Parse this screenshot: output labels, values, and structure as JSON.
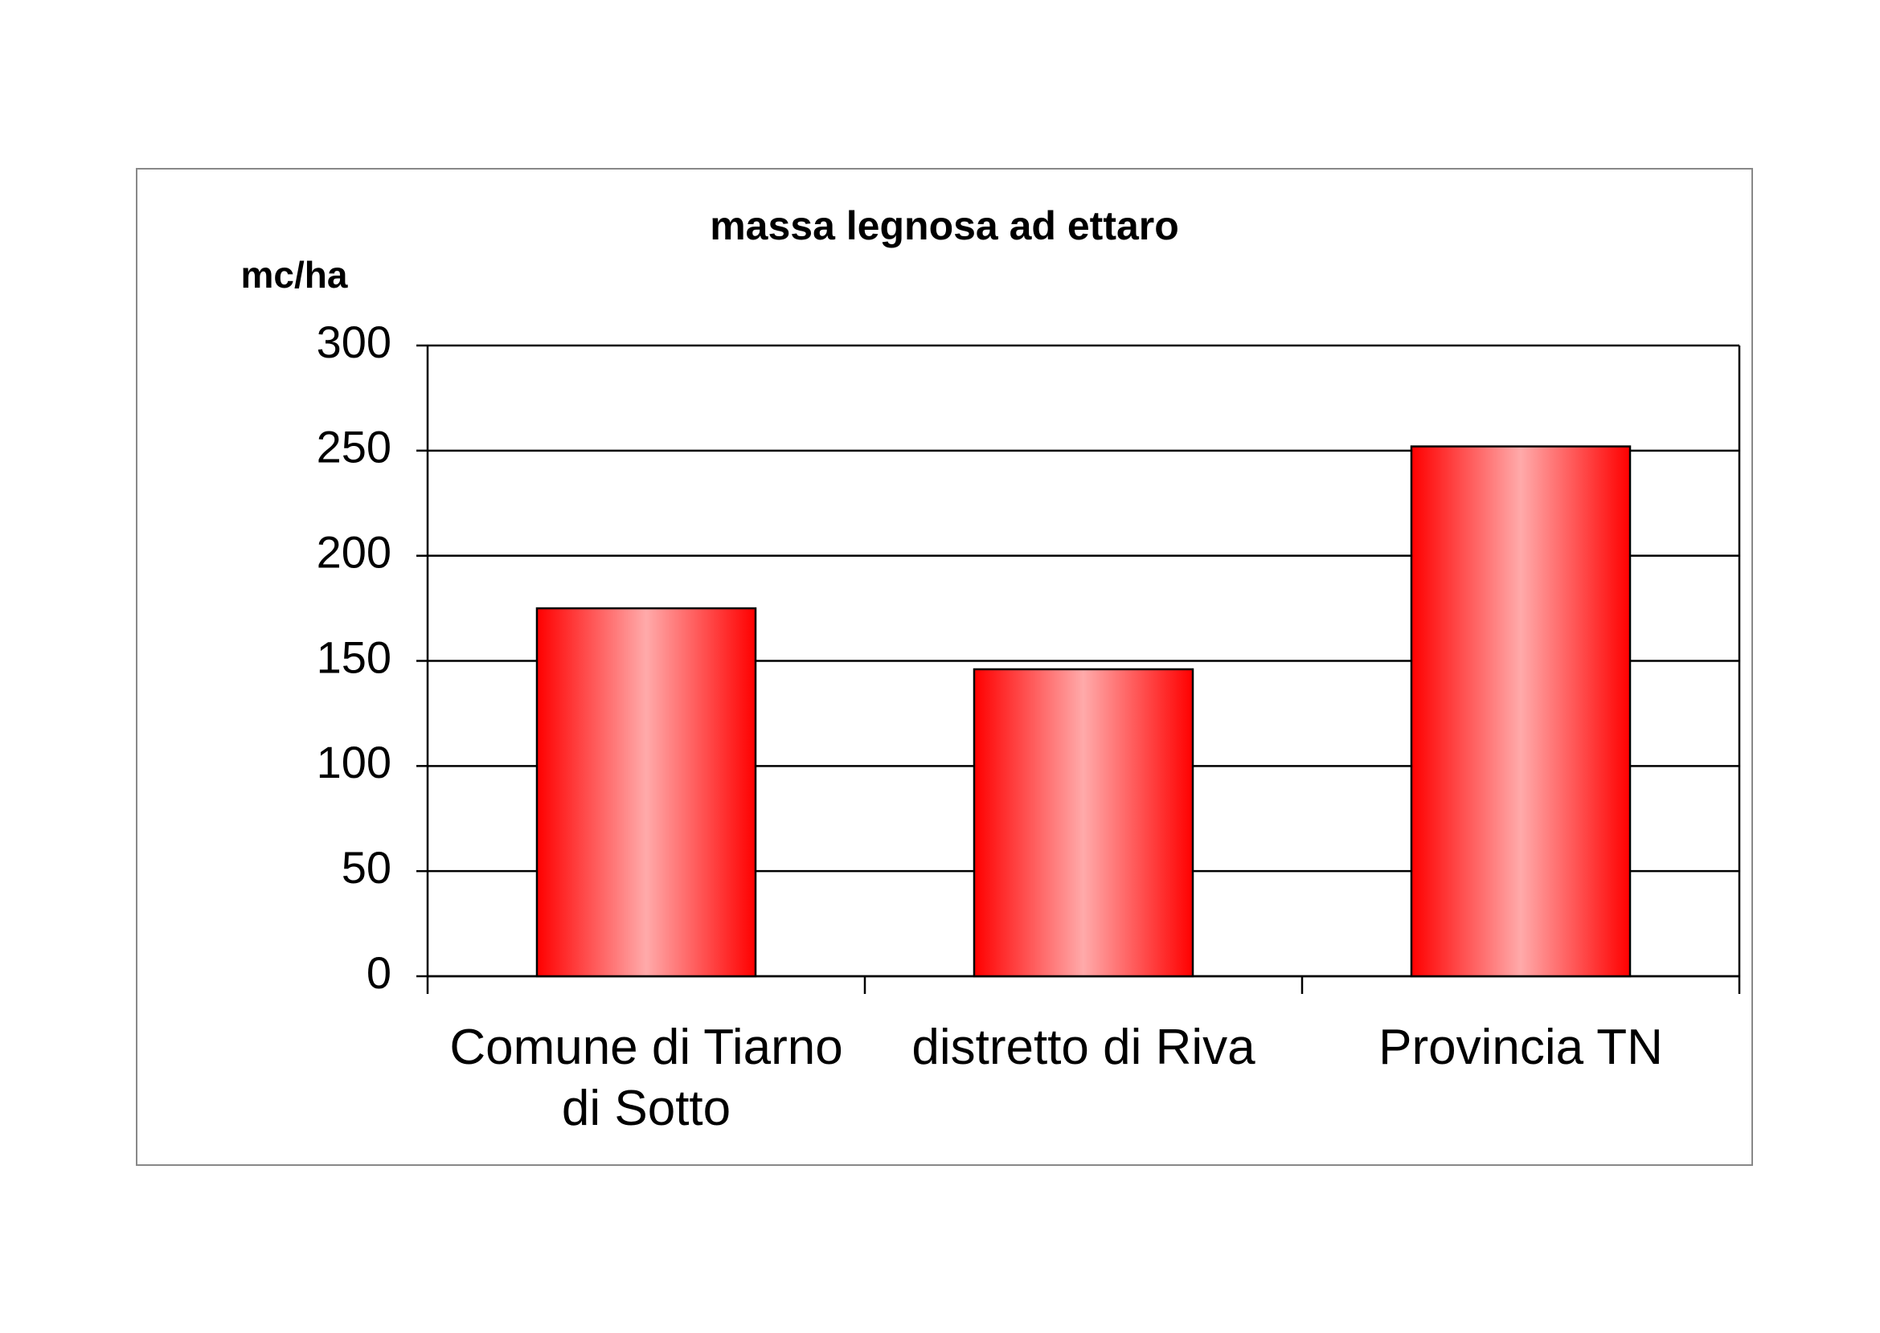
{
  "chart_data": {
    "type": "bar",
    "title": "massa legnosa ad ettaro",
    "y_label": "mc/ha",
    "categories": [
      "Comune di Tiarno di Sotto",
      "distretto di Riva",
      "Provincia TN"
    ],
    "values": [
      175,
      146,
      252
    ],
    "color": "#ff0000",
    "ylim": [
      0,
      300
    ],
    "yticks": [
      0,
      50,
      100,
      150,
      200,
      250,
      300
    ],
    "grid": true
  }
}
